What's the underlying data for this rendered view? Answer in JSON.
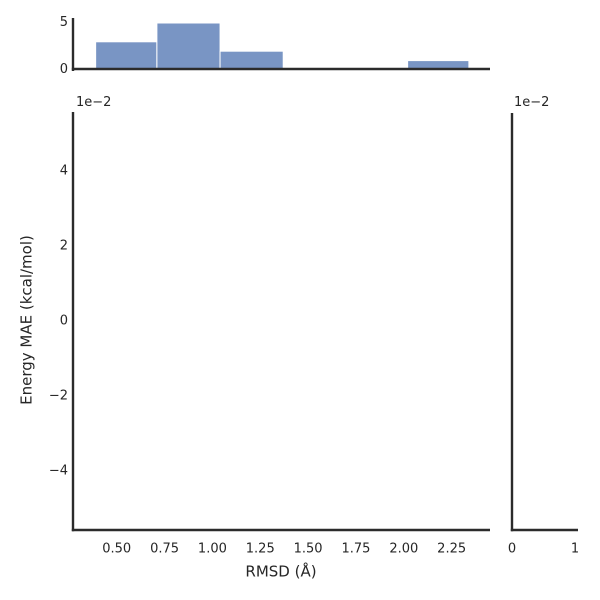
{
  "figure": {
    "kind": "jointplot",
    "background": "#ffffff",
    "colors": {
      "bar_fill": "#7995c4",
      "bar_edge": "#ffffff",
      "spine": "#2b2b2b",
      "text": "#262626"
    }
  },
  "chart_data": [
    {
      "id": "top_marginal_histogram",
      "type": "bar",
      "role": "x-marginal histogram of RMSD",
      "bin_edges": [
        0.39,
        0.71,
        1.04,
        1.37,
        1.69,
        2.02,
        2.34
      ],
      "counts": [
        3,
        5,
        2,
        0,
        0,
        1
      ],
      "yticks": [
        0,
        5
      ],
      "yticklabels": [
        "0",
        "5"
      ],
      "ylim": [
        0,
        5.55
      ],
      "xlim": [
        0.27,
        2.45
      ],
      "grid": false
    },
    {
      "id": "main_joint_panel",
      "type": "scatter",
      "role": "joint panel (no visible points)",
      "points": [],
      "xlabel": "RMSD (Å)",
      "ylabel": "Energy MAE (kcal/mol)",
      "xticks": [
        0.5,
        0.75,
        1.0,
        1.25,
        1.5,
        1.75,
        2.0,
        2.25
      ],
      "xticklabels": [
        "0.50",
        "0.75",
        "1.00",
        "1.25",
        "1.50",
        "1.75",
        "2.00",
        "2.25"
      ],
      "yticks": [
        4,
        2,
        0,
        -2,
        -4
      ],
      "yticklabels": [
        "4",
        "2",
        "0",
        "−2",
        "−4"
      ],
      "y_offset_text": "1e−2",
      "y_scale_factor": 0.01,
      "xlim": [
        0.27,
        2.45
      ],
      "ylim_in_1e2_units": [
        -5.55,
        5.55
      ],
      "grid": false
    },
    {
      "id": "right_marginal_histogram",
      "type": "bar",
      "role": "y-marginal histogram (no visible bars)",
      "counts": [],
      "xticks": [
        0,
        1
      ],
      "xticklabels": [
        "0",
        "1"
      ],
      "x_offset_text": "1e−2",
      "xlim": [
        0,
        1.05
      ],
      "grid": false
    }
  ]
}
